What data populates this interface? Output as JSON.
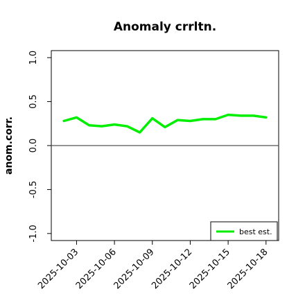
{
  "chart_data": {
    "type": "line",
    "title": "Anomaly crrltn.",
    "xlabel": "",
    "ylabel": "anom.corr.",
    "x": [
      "2025-10-02",
      "2025-10-03",
      "2025-10-04",
      "2025-10-05",
      "2025-10-06",
      "2025-10-07",
      "2025-10-08",
      "2025-10-09",
      "2025-10-10",
      "2025-10-11",
      "2025-10-12",
      "2025-10-13",
      "2025-10-14",
      "2025-10-15",
      "2025-10-16",
      "2025-10-17",
      "2025-10-18"
    ],
    "series": [
      {
        "name": "best est.",
        "color": "#00ee00",
        "values": [
          0.28,
          0.32,
          0.23,
          0.22,
          0.24,
          0.22,
          0.15,
          0.31,
          0.21,
          0.29,
          0.28,
          0.3,
          0.3,
          0.35,
          0.34,
          0.34,
          0.32
        ]
      }
    ],
    "reference_line": {
      "y": 0.0,
      "color": "#555555"
    },
    "xticks": [
      "2025-10-03",
      "2025-10-06",
      "2025-10-09",
      "2025-10-12",
      "2025-10-15",
      "2025-10-18"
    ],
    "highlighted_xtick": "2025-10-09",
    "highlight_color": "#228b22",
    "yticks": [
      -1.0,
      -0.5,
      0.0,
      0.5,
      1.0
    ],
    "ytick_labels": [
      "-1.0",
      "-0.5",
      "0.0",
      "0.5",
      "1.0"
    ],
    "xlim": [
      "2025-10-01",
      "2025-10-19"
    ],
    "ylim": [
      -1.08,
      1.08
    ],
    "grid": false,
    "legend": {
      "position": "bottom-right",
      "entries": [
        "best est."
      ]
    }
  }
}
